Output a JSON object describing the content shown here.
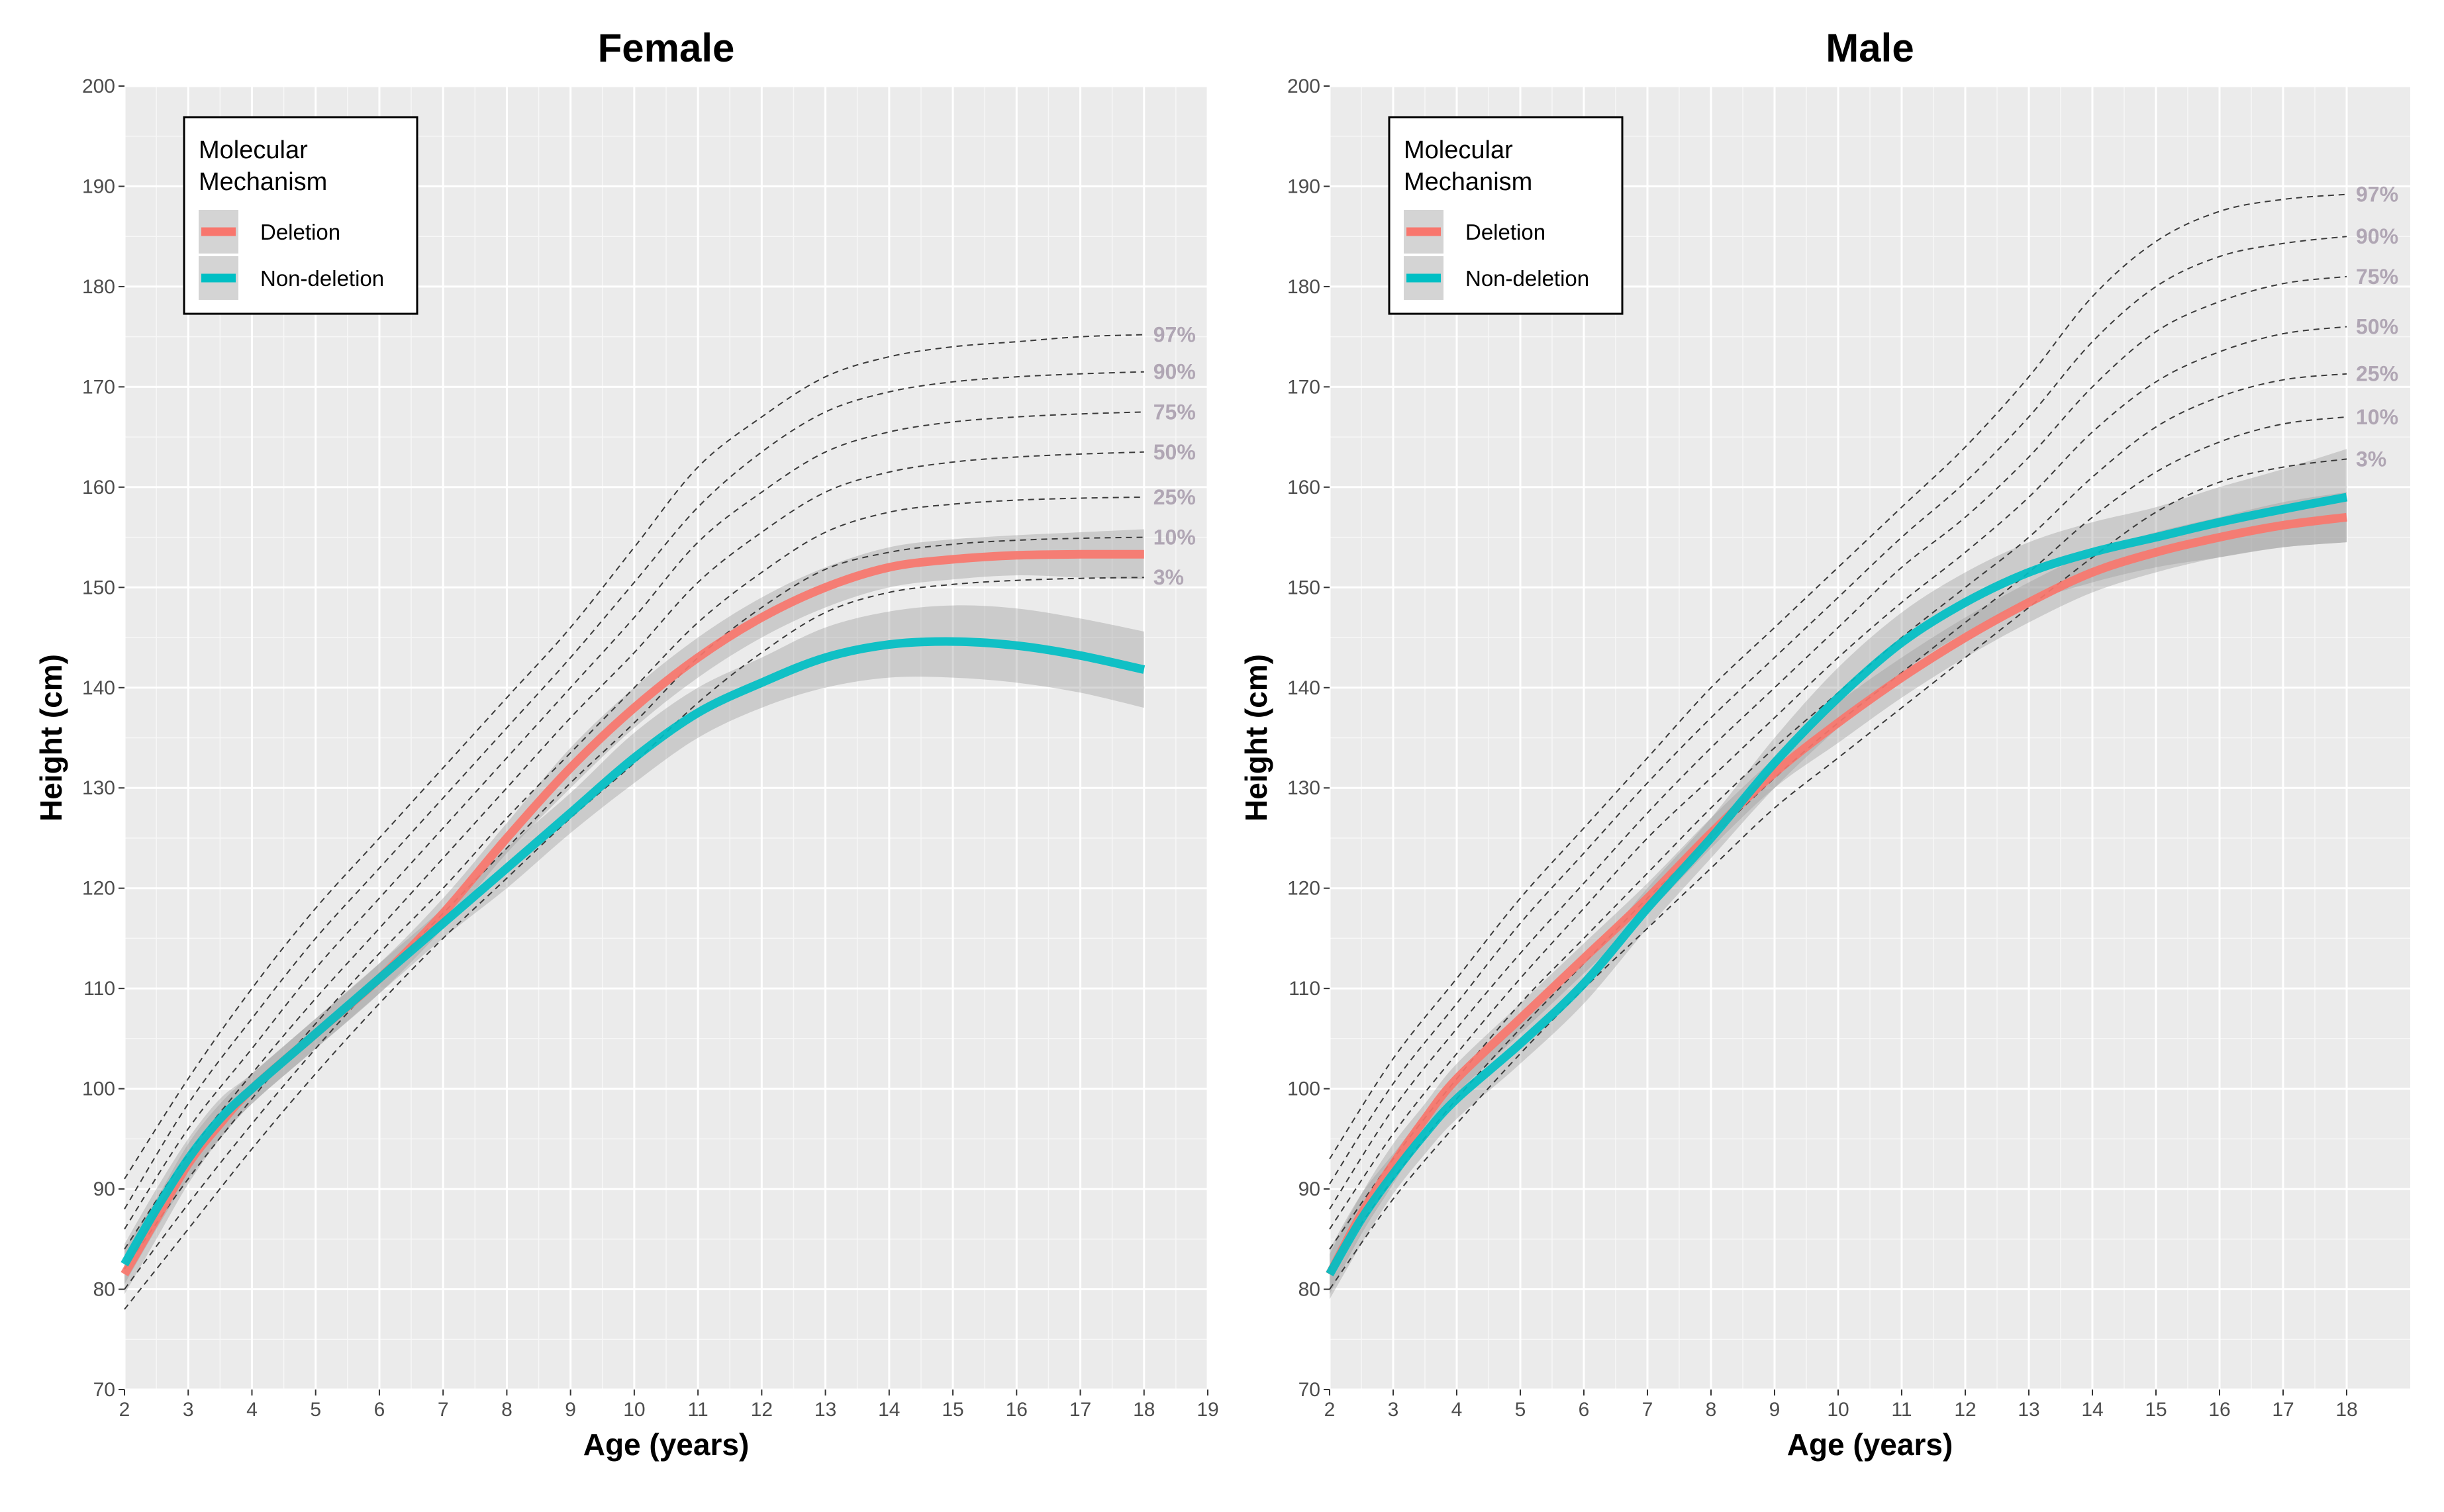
{
  "chart_data": [
    {
      "type": "line",
      "title": "Female",
      "xlabel": "Age (years)",
      "ylabel": "Height (cm)",
      "xlim": [
        2,
        19
      ],
      "ylim": [
        70,
        200
      ],
      "xticks": [
        2,
        3,
        4,
        5,
        6,
        7,
        8,
        9,
        10,
        11,
        12,
        13,
        14,
        15,
        16,
        17,
        18,
        19
      ],
      "yticks": [
        70,
        80,
        90,
        100,
        110,
        120,
        130,
        140,
        150,
        160,
        170,
        180,
        190,
        200
      ],
      "legend": {
        "title_lines": [
          "Molecular",
          "Mechanism"
        ],
        "items": [
          {
            "label": "Deletion",
            "color": "#f8766d"
          },
          {
            "label": "Non-deletion",
            "color": "#00bfc4"
          }
        ],
        "placement": "top-left"
      },
      "series": [
        {
          "name": "Deletion",
          "color": "#f8766d",
          "x": [
            2,
            2.5,
            3,
            3.5,
            4,
            5,
            6,
            7,
            8,
            9,
            10,
            11,
            12,
            13,
            14,
            15,
            16,
            17,
            18
          ],
          "y": [
            81.5,
            87,
            92.5,
            96.5,
            100,
            105.5,
            111,
            117.5,
            125,
            132,
            138,
            143,
            147,
            150,
            152,
            152.8,
            153.2,
            153.3,
            153.3
          ],
          "ci_lower": [
            79.5,
            85,
            90.5,
            95,
            98.5,
            104,
            109.5,
            116,
            123.5,
            130,
            136,
            141,
            145,
            148,
            150,
            150.8,
            151.2,
            151,
            150.8
          ],
          "ci_upper": [
            84,
            89,
            94.5,
            98.5,
            101.5,
            107,
            112.5,
            119,
            126.5,
            134,
            140,
            145,
            149,
            152,
            154,
            154.8,
            155.2,
            155.5,
            155.8
          ]
        },
        {
          "name": "Non-deletion",
          "color": "#00bfc4",
          "x": [
            2,
            2.5,
            3,
            3.5,
            4,
            5,
            6,
            7,
            8,
            9,
            10,
            11,
            12,
            13,
            14,
            15,
            16,
            17,
            18
          ],
          "y": [
            82.5,
            88,
            93,
            97,
            100,
            105.5,
            111,
            116.5,
            122,
            127.5,
            133,
            137.5,
            140.5,
            143,
            144.3,
            144.6,
            144.2,
            143.2,
            141.8
          ],
          "ci_lower": [
            80.5,
            86,
            91,
            95,
            98.5,
            104,
            109.5,
            115,
            120,
            125.5,
            130.5,
            135,
            138,
            140,
            141,
            141,
            140.5,
            139.5,
            138
          ],
          "ci_upper": [
            84.5,
            90,
            95,
            99,
            101.5,
            107,
            112.5,
            118,
            124,
            129.5,
            135.5,
            140,
            143,
            146,
            147.6,
            148.2,
            147.9,
            146.9,
            145.6
          ]
        }
      ],
      "reference_percentiles": [
        {
          "label": "97%",
          "x": [
            2,
            3,
            4,
            5,
            6,
            7,
            8,
            9,
            10,
            11,
            12,
            13,
            14,
            15,
            16,
            17,
            18
          ],
          "y": [
            91,
            101,
            110,
            118,
            125,
            132,
            139,
            146,
            154,
            162,
            167,
            171,
            173,
            174,
            174.5,
            175,
            175.2
          ]
        },
        {
          "label": "90%",
          "x": [
            2,
            3,
            4,
            5,
            6,
            7,
            8,
            9,
            10,
            11,
            12,
            13,
            14,
            15,
            16,
            17,
            18
          ],
          "y": [
            88,
            98.5,
            107,
            115,
            122,
            129,
            136,
            143,
            150.5,
            158,
            163.5,
            167.5,
            169.5,
            170.5,
            171,
            171.3,
            171.5
          ]
        },
        {
          "label": "75%",
          "x": [
            2,
            3,
            4,
            5,
            6,
            7,
            8,
            9,
            10,
            11,
            12,
            13,
            14,
            15,
            16,
            17,
            18
          ],
          "y": [
            86,
            96,
            104,
            112,
            119,
            126,
            133,
            140,
            147,
            154.5,
            159.5,
            163.5,
            165.5,
            166.5,
            167,
            167.3,
            167.5
          ]
        },
        {
          "label": "50%",
          "x": [
            2,
            3,
            4,
            5,
            6,
            7,
            8,
            9,
            10,
            11,
            12,
            13,
            14,
            15,
            16,
            17,
            18
          ],
          "y": [
            84,
            93.5,
            101.5,
            109,
            116,
            123,
            130,
            137,
            143.5,
            150.5,
            155.5,
            159.5,
            161.5,
            162.5,
            163,
            163.3,
            163.5
          ]
        },
        {
          "label": "25%",
          "x": [
            2,
            3,
            4,
            5,
            6,
            7,
            8,
            9,
            10,
            11,
            12,
            13,
            14,
            15,
            16,
            17,
            18
          ],
          "y": [
            82,
            91,
            99,
            106.5,
            113.5,
            120,
            127,
            133.5,
            140,
            146.5,
            151.5,
            155.5,
            157.5,
            158.3,
            158.7,
            158.9,
            159
          ]
        },
        {
          "label": "10%",
          "x": [
            2,
            3,
            4,
            5,
            6,
            7,
            8,
            9,
            10,
            11,
            12,
            13,
            14,
            15,
            16,
            17,
            18
          ],
          "y": [
            80,
            88.5,
            96.5,
            104,
            111,
            117.5,
            124,
            130.5,
            136.5,
            143,
            148,
            151.8,
            153.5,
            154.3,
            154.7,
            154.9,
            155
          ]
        },
        {
          "label": "3%",
          "x": [
            2,
            3,
            4,
            5,
            6,
            7,
            8,
            9,
            10,
            11,
            12,
            13,
            14,
            15,
            16,
            17,
            18
          ],
          "y": [
            78,
            86,
            94,
            101.5,
            108.5,
            115,
            121,
            127,
            132.5,
            138.5,
            143.5,
            147.5,
            149.5,
            150.3,
            150.7,
            150.9,
            151
          ]
        }
      ]
    },
    {
      "type": "line",
      "title": "Male",
      "xlabel": "Age (years)",
      "ylabel": "Height (cm)",
      "xlim": [
        2,
        19
      ],
      "ylim": [
        70,
        200
      ],
      "xticks": [
        2,
        3,
        4,
        5,
        6,
        7,
        8,
        9,
        10,
        11,
        12,
        13,
        14,
        15,
        16,
        17,
        18
      ],
      "yticks": [
        70,
        80,
        90,
        100,
        110,
        120,
        130,
        140,
        150,
        160,
        170,
        180,
        190,
        200
      ],
      "legend": {
        "title_lines": [
          "Molecular",
          "Mechanism"
        ],
        "items": [
          {
            "label": "Deletion",
            "color": "#f8766d"
          },
          {
            "label": "Non-deletion",
            "color": "#00bfc4"
          }
        ],
        "placement": "top-left"
      },
      "series": [
        {
          "name": "Deletion",
          "color": "#f8766d",
          "x": [
            2,
            2.5,
            3,
            3.5,
            4,
            5,
            6,
            7,
            8,
            9,
            10,
            11,
            12,
            13,
            14,
            15,
            16,
            17,
            18
          ],
          "y": [
            81.5,
            87.5,
            92.5,
            97,
            101,
            107,
            113,
            119,
            125.5,
            131.5,
            136.5,
            141,
            145,
            148.5,
            151.5,
            153.5,
            155,
            156.2,
            157
          ],
          "ci_lower": [
            79.5,
            85.5,
            90.5,
            95.5,
            99.5,
            105.5,
            111.5,
            117.5,
            124,
            130,
            134.5,
            139,
            143,
            146.5,
            149.5,
            151.5,
            153,
            154,
            154.5
          ],
          "ci_upper": [
            83.5,
            89.5,
            94.5,
            98.5,
            102.5,
            108.5,
            114.5,
            120.5,
            127,
            133,
            138.5,
            143,
            147,
            150.5,
            153.5,
            155.5,
            157,
            158.5,
            159.5
          ]
        },
        {
          "name": "Non-deletion",
          "color": "#00bfc4",
          "x": [
            2,
            2.5,
            3,
            3.5,
            4,
            5,
            6,
            7,
            8,
            9,
            10,
            11,
            12,
            13,
            14,
            15,
            16,
            17,
            18
          ],
          "y": [
            81.5,
            87,
            91.5,
            95.5,
            99,
            104.5,
            110.5,
            118,
            125,
            132.5,
            139,
            144.5,
            148.5,
            151.5,
            153.5,
            155,
            156.5,
            157.8,
            159
          ],
          "ci_lower": [
            79,
            84.5,
            89.5,
            93.5,
            97,
            102.5,
            108.5,
            116,
            123,
            130,
            136,
            141.5,
            145.5,
            148.5,
            150.5,
            152,
            153,
            154,
            154.5
          ],
          "ci_upper": [
            84,
            89.5,
            93.5,
            97.5,
            101,
            106.5,
            112.5,
            120,
            127,
            135,
            142,
            147.5,
            151.5,
            154.5,
            156.5,
            158,
            160,
            161.8,
            163.8
          ]
        }
      ],
      "reference_percentiles": [
        {
          "label": "97%",
          "x": [
            2,
            3,
            4,
            5,
            6,
            7,
            8,
            9,
            10,
            11,
            12,
            13,
            14,
            15,
            16,
            17,
            18
          ],
          "y": [
            93,
            103,
            111,
            119,
            126,
            133,
            140,
            146,
            152,
            158,
            164,
            171,
            179,
            184.5,
            187.5,
            188.7,
            189.2
          ]
        },
        {
          "label": "90%",
          "x": [
            2,
            3,
            4,
            5,
            6,
            7,
            8,
            9,
            10,
            11,
            12,
            13,
            14,
            15,
            16,
            17,
            18
          ],
          "y": [
            90.5,
            100.5,
            108.5,
            116.5,
            123.5,
            130.5,
            137,
            143,
            149,
            155,
            160.5,
            167,
            174.5,
            180,
            183,
            184.3,
            185
          ]
        },
        {
          "label": "75%",
          "x": [
            2,
            3,
            4,
            5,
            6,
            7,
            8,
            9,
            10,
            11,
            12,
            13,
            14,
            15,
            16,
            17,
            18
          ],
          "y": [
            88,
            98,
            106,
            113.5,
            120.5,
            127.5,
            134,
            140,
            146,
            152,
            157,
            163,
            170,
            175.5,
            178.5,
            180.3,
            181
          ]
        },
        {
          "label": "50%",
          "x": [
            2,
            3,
            4,
            5,
            6,
            7,
            8,
            9,
            10,
            11,
            12,
            13,
            14,
            15,
            16,
            17,
            18
          ],
          "y": [
            86,
            95.5,
            103.5,
            111,
            118,
            125,
            131,
            137,
            143,
            148.5,
            153.5,
            159,
            165.5,
            170.5,
            173.5,
            175.3,
            176
          ]
        },
        {
          "label": "25%",
          "x": [
            2,
            3,
            4,
            5,
            6,
            7,
            8,
            9,
            10,
            11,
            12,
            13,
            14,
            15,
            16,
            17,
            18
          ],
          "y": [
            84,
            93,
            101,
            108.5,
            115,
            121.5,
            128,
            134,
            139.5,
            145,
            150,
            155,
            161,
            166,
            169,
            170.7,
            171.3
          ]
        },
        {
          "label": "10%",
          "x": [
            2,
            3,
            4,
            5,
            6,
            7,
            8,
            9,
            10,
            11,
            12,
            13,
            14,
            15,
            16,
            17,
            18
          ],
          "y": [
            82,
            91,
            99,
            106,
            112.5,
            119,
            125,
            131,
            136.5,
            141.5,
            146.5,
            151.5,
            157,
            161.5,
            164.5,
            166.3,
            167
          ]
        },
        {
          "label": "3%",
          "x": [
            2,
            3,
            4,
            5,
            6,
            7,
            8,
            9,
            10,
            11,
            12,
            13,
            14,
            15,
            16,
            17,
            18
          ],
          "y": [
            80,
            89,
            96.5,
            103.5,
            110,
            116,
            122,
            128,
            133,
            138,
            143,
            148,
            153,
            157.5,
            160.5,
            162,
            162.8
          ]
        }
      ]
    }
  ]
}
